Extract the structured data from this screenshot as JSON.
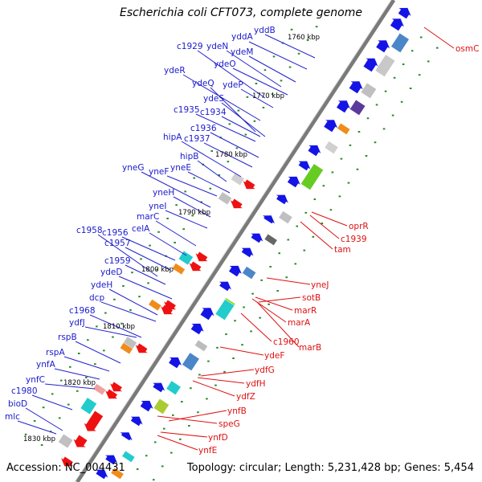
{
  "title": "Escherichia coli CFT073, complete genome",
  "footer": {
    "accession": "Accession: NC_004431",
    "topology": "Topology: circular; Length: 5,231,428 bp; Genes: 5,454"
  },
  "ticks": [
    "1760 kbp",
    "1770 kbp",
    "1780 kbp",
    "1790 kbp",
    "1800 kbp",
    "1810 kbp",
    "1820 kbp",
    "1830 kbp"
  ],
  "genes_left": [
    "yddB",
    "yddA",
    "c1929",
    "ydeN",
    "ydeM",
    "ydeO",
    "ydeR",
    "ydeQ",
    "ydeP",
    "ydeS",
    "c1935",
    "c1934",
    "c1936",
    "c1937",
    "hipA",
    "hipB",
    "yneG",
    "yneF",
    "yneE",
    "yneH",
    "yneI",
    "marC",
    "celA",
    "c1958",
    "c1956",
    "c1957",
    "c1959",
    "ydeD",
    "ydeH",
    "dcp",
    "c1968",
    "ydfJ",
    "rspB",
    "rspA",
    "ynfA",
    "ynfC",
    "c1980",
    "bioD",
    "mlc"
  ],
  "genes_right": [
    "osmC",
    "oprR",
    "c1939",
    "tam",
    "yneJ",
    "sotB",
    "marR",
    "marA",
    "c1960",
    "marB",
    "ydeF",
    "ydfG",
    "ydfH",
    "ydfZ",
    "ynfB",
    "speG",
    "ynfD",
    "ynfE"
  ],
  "colors": {
    "backbone": "#7a7a7a",
    "forward": "#1414e6",
    "reverse": "#ee1111",
    "left_label": "#1a1acc",
    "right_label": "#dd1111",
    "tick_dots": "#2a8a2a"
  }
}
